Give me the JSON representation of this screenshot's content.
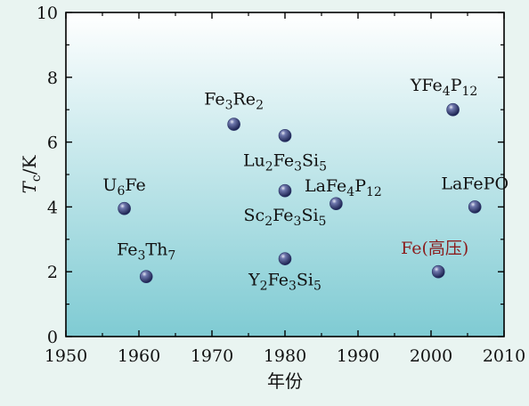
{
  "chart_data": {
    "type": "scatter",
    "title": "",
    "xlabel": "年份",
    "ylabel": {
      "main": "T",
      "sub": "c",
      "unit": "/K"
    },
    "xlim": [
      1950,
      2010
    ],
    "ylim": [
      0,
      10
    ],
    "x_ticks": [
      1950,
      1960,
      1970,
      1980,
      1990,
      2000,
      2010
    ],
    "y_ticks": [
      0,
      2,
      4,
      6,
      8,
      10
    ],
    "grid": false,
    "legend": "none",
    "background_gradient": [
      "#ffffff",
      "#7fcbd3"
    ],
    "marker_color": "#2b3568",
    "points": [
      {
        "x": 1958,
        "y": 3.95,
        "label": [
          "U",
          {
            "sub": "6"
          },
          "Fe"
        ]
      },
      {
        "x": 1961,
        "y": 1.85,
        "label": [
          "Fe",
          {
            "sub": "3"
          },
          "Th",
          {
            "sub": "7"
          }
        ]
      },
      {
        "x": 1973,
        "y": 6.55,
        "label": [
          "Fe",
          {
            "sub": "3"
          },
          "Re",
          {
            "sub": "2"
          }
        ]
      },
      {
        "x": 1980,
        "y": 6.2,
        "label": [
          "Lu",
          {
            "sub": "2"
          },
          "Fe",
          {
            "sub": "3"
          },
          "Si",
          {
            "sub": "5"
          }
        ]
      },
      {
        "x": 1980,
        "y": 4.5,
        "label": [
          "Sc",
          {
            "sub": "2"
          },
          "Fe",
          {
            "sub": "3"
          },
          "Si",
          {
            "sub": "5"
          }
        ]
      },
      {
        "x": 1980,
        "y": 2.4,
        "label": [
          "Y",
          {
            "sub": "2"
          },
          "Fe",
          {
            "sub": "3"
          },
          "Si",
          {
            "sub": "5"
          }
        ]
      },
      {
        "x": 1987,
        "y": 4.1,
        "label": [
          "LaFe",
          {
            "sub": "4"
          },
          "P",
          {
            "sub": "12"
          }
        ]
      },
      {
        "x": 2001,
        "y": 2.0,
        "label": [
          "Fe(高压)"
        ],
        "color": "#8b1c1c"
      },
      {
        "x": 2003,
        "y": 7.0,
        "label": [
          "YFe",
          {
            "sub": "4"
          },
          "P",
          {
            "sub": "12"
          }
        ]
      },
      {
        "x": 2006,
        "y": 4.0,
        "label": [
          "LaFePO"
        ]
      }
    ]
  }
}
